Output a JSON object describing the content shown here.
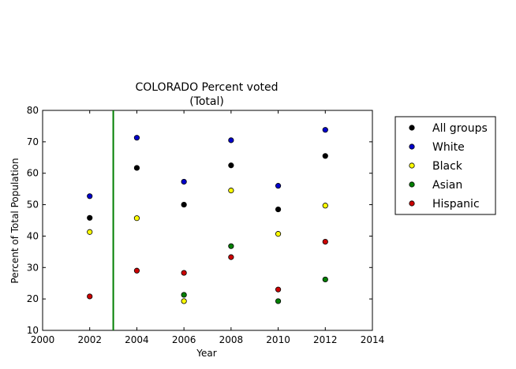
{
  "chart_data": {
    "type": "scatter",
    "title": "COLORADO Percent voted",
    "subtitle": "(Total)",
    "xlabel": "Year",
    "ylabel": "Percent of Total Population",
    "xlim": [
      2000,
      2014
    ],
    "ylim": [
      10,
      80
    ],
    "xticks": [
      2000,
      2002,
      2004,
      2006,
      2008,
      2010,
      2012,
      2014
    ],
    "yticks": [
      10,
      20,
      30,
      40,
      50,
      60,
      70,
      80
    ],
    "x": [
      2002,
      2004,
      2006,
      2008,
      2010,
      2012
    ],
    "grid": false,
    "legend_position": "right, outside plot",
    "vertical_line": {
      "x": 2003,
      "color": "#007f00"
    },
    "series": [
      {
        "name": "All groups",
        "color": "#000000",
        "values": [
          45.8,
          61.7,
          50.0,
          62.5,
          48.5,
          65.5
        ]
      },
      {
        "name": "White",
        "color": "#0000cc",
        "values": [
          52.7,
          71.3,
          57.3,
          70.5,
          56.0,
          73.8
        ]
      },
      {
        "name": "Black",
        "color": "#ffff00",
        "values": [
          41.3,
          45.7,
          19.3,
          54.5,
          40.7,
          49.7
        ]
      },
      {
        "name": "Asian",
        "color": "#007f00",
        "values": [
          null,
          null,
          21.3,
          36.8,
          19.3,
          26.2
        ]
      },
      {
        "name": "Hispanic",
        "color": "#cc0000",
        "values": [
          20.8,
          29.0,
          28.3,
          33.3,
          23.0,
          38.2
        ]
      }
    ]
  }
}
